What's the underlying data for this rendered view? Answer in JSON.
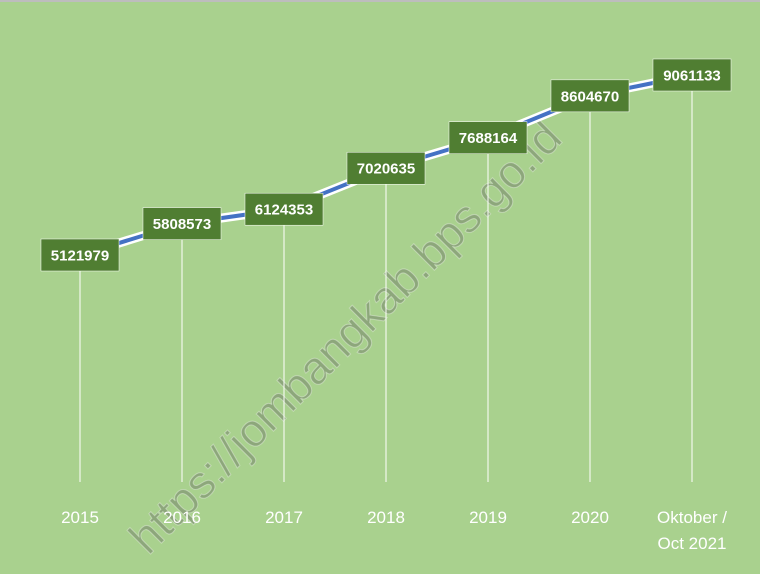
{
  "chart_data": {
    "type": "line",
    "categories": [
      "2015",
      "2016",
      "2017",
      "2018",
      "2019",
      "2020",
      "Oktober / Oct 2021"
    ],
    "values": [
      5121979,
      5808573,
      6124353,
      7020635,
      7688164,
      8604670,
      9061133
    ],
    "color": "#4472c4",
    "label_color": "#507e32",
    "background": "#a9d18e",
    "watermark": "https://jombangkab.bps.go.id"
  }
}
